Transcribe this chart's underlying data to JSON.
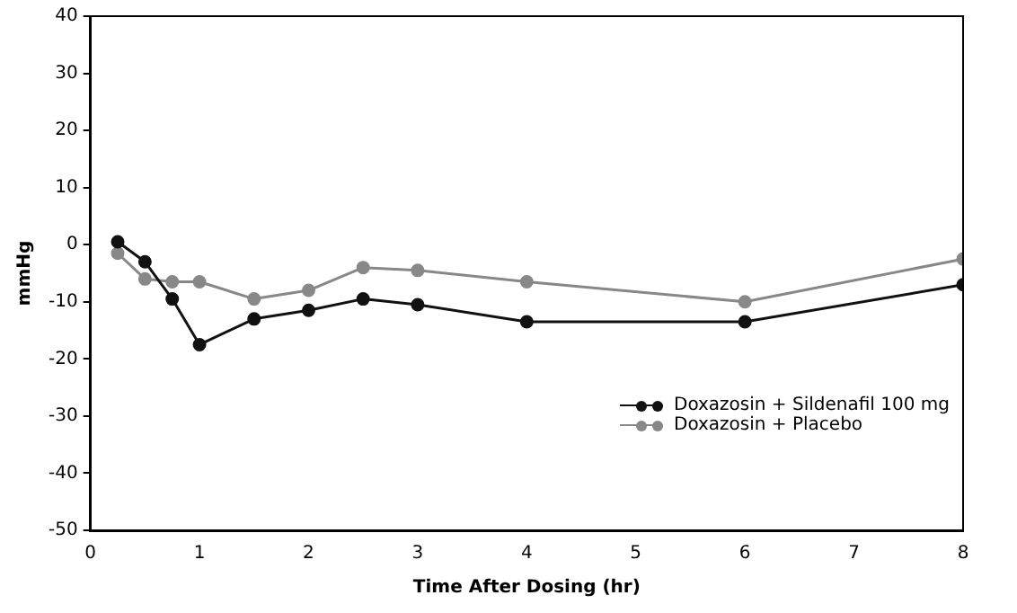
{
  "chart_data": {
    "type": "line",
    "xlabel": "Time After Dosing (hr)",
    "ylabel": "mmHg",
    "x": [
      0.25,
      0.5,
      0.75,
      1,
      1.5,
      2,
      2.5,
      3,
      4,
      6,
      8
    ],
    "series": [
      {
        "name": "Doxazosin + Sildenafil 100 mg",
        "color": "#111111",
        "values": [
          0.5,
          -3,
          -9.5,
          -17.5,
          -13,
          -11.5,
          -9.5,
          -10.5,
          -13.5,
          -13.5,
          -7
        ]
      },
      {
        "name": "Doxazosin + Placebo",
        "color": "#888888",
        "values": [
          -1.5,
          -6,
          -6.5,
          -6.5,
          -9.5,
          -8,
          -4,
          -4.5,
          -6.5,
          -10,
          -2.5
        ]
      }
    ],
    "xlim": [
      0,
      8
    ],
    "xticks": [
      0,
      1,
      2,
      3,
      4,
      5,
      6,
      7,
      8
    ],
    "ylim": [
      -50,
      40
    ],
    "yticks": [
      -50,
      -40,
      -30,
      -20,
      -10,
      0,
      10,
      20,
      30,
      40
    ],
    "grid": false,
    "legend": "bottom right",
    "marker": "circle",
    "line_style": "solid"
  }
}
